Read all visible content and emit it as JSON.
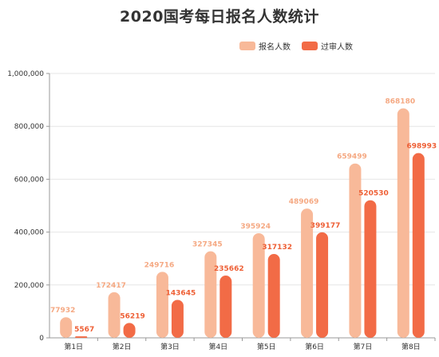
{
  "colors": {
    "series1": "#F8B999",
    "series2": "#F26B46",
    "axis": "#999999",
    "grid": "#E6E6E6",
    "text": "#333333"
  },
  "chart_data": {
    "type": "bar",
    "title": "2020国考每日报名人数统计",
    "categories": [
      "第1日",
      "第2日",
      "第3日",
      "第4日",
      "第5日",
      "第6日",
      "第7日",
      "第8日"
    ],
    "series": [
      {
        "name": "报名人数",
        "values": [
          77932,
          172417,
          249716,
          327345,
          395924,
          489069,
          659499,
          868180
        ]
      },
      {
        "name": "过审人数",
        "values": [
          5567,
          56219,
          143645,
          235662,
          317132,
          399177,
          520530,
          698993
        ]
      }
    ],
    "yticks": [
      "0",
      "200,000",
      "400,000",
      "600,000",
      "800,000",
      "1,000,000"
    ],
    "ylim": [
      0,
      1000000
    ],
    "grid": true,
    "legend": "top-right"
  }
}
